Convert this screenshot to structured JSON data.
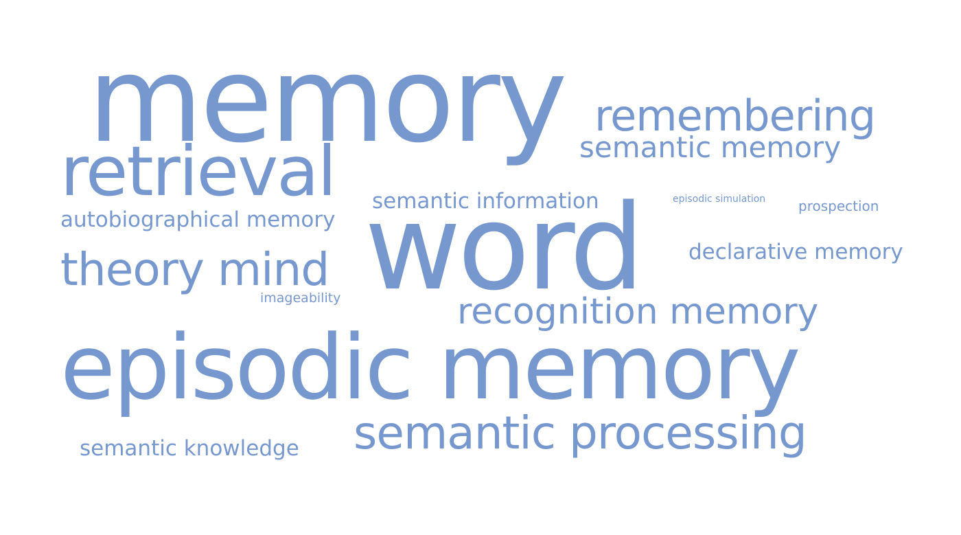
{
  "colors": {
    "word_fill": "#7698cf",
    "background": "#ffffff"
  },
  "words": {
    "memory": "memory",
    "remembering": "remembering",
    "semantic_memory": "semantic memory",
    "retrieval": "retrieval",
    "semantic_information": "semantic information",
    "episodic_simulation": "episodic simulation",
    "prospection": "prospection",
    "autobiographical_memory": "autobiographical memory",
    "word": "word",
    "declarative_memory": "declarative memory",
    "theory_mind": "theory mind",
    "imageability": "imageability",
    "recognition_memory": "recognition memory",
    "episodic_memory": "episodic memory",
    "semantic_processing": "semantic processing",
    "semantic_knowledge": "semantic knowledge"
  }
}
